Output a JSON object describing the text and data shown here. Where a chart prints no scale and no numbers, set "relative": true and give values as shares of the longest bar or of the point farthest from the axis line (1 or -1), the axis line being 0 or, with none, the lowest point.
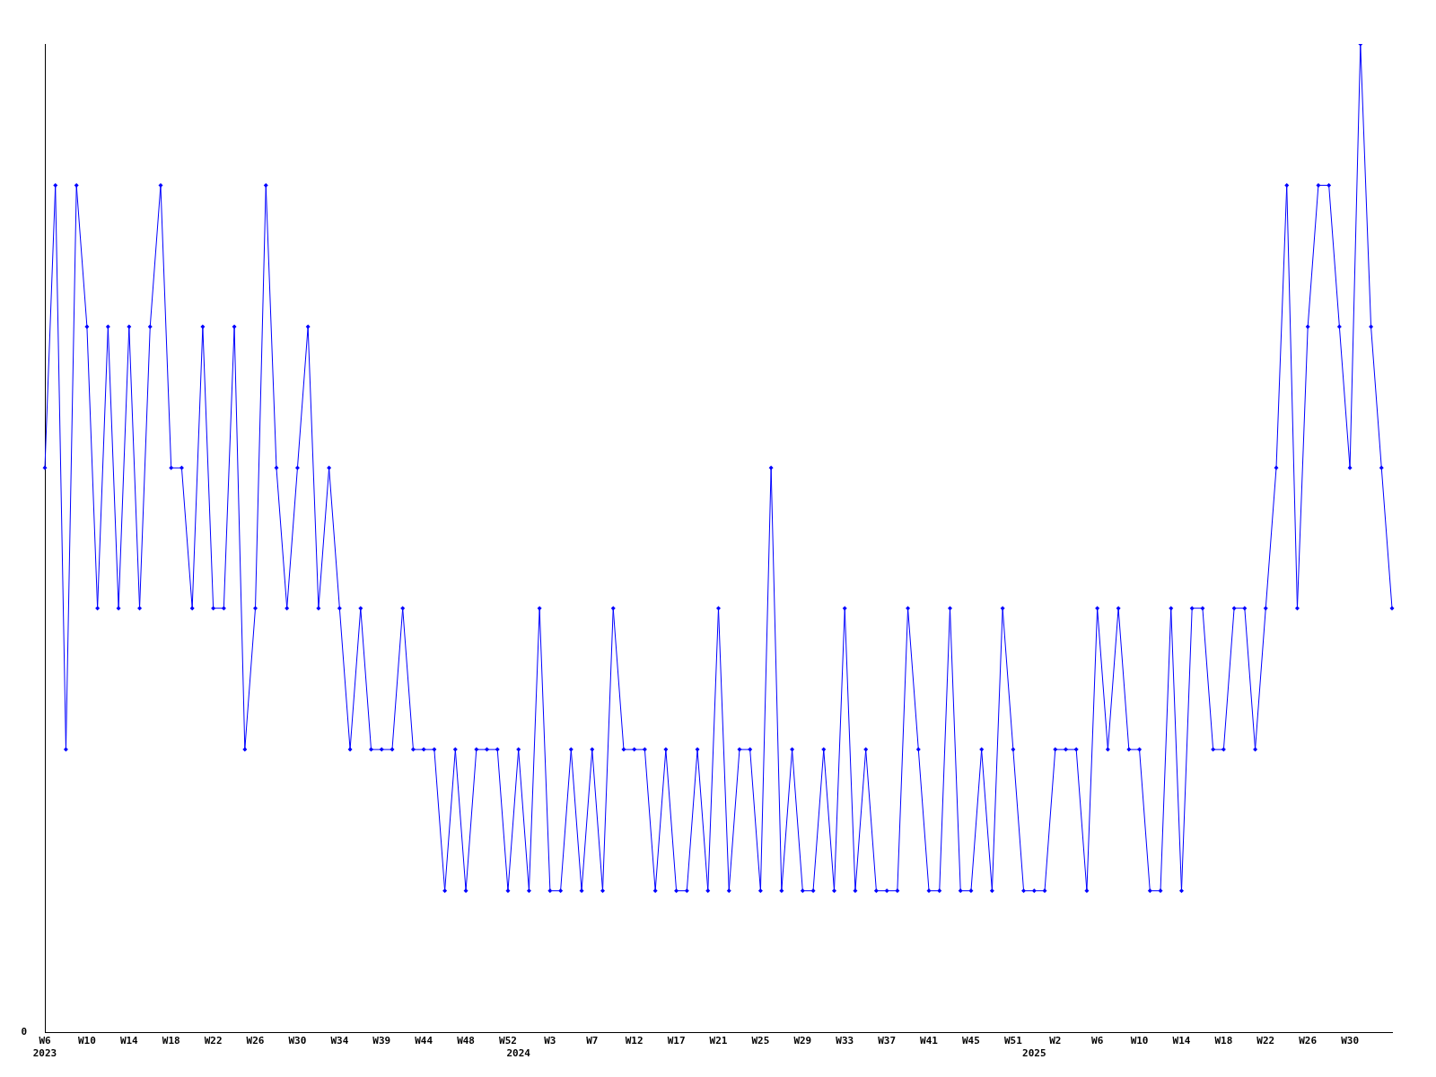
{
  "chart_data": {
    "type": "line",
    "relative": true,
    "categories": [
      "W6\n2023",
      null,
      null,
      null,
      "W10",
      null,
      null,
      null,
      "W14",
      null,
      null,
      null,
      "W18",
      null,
      null,
      null,
      "W22",
      null,
      null,
      null,
      "W26",
      null,
      null,
      null,
      "W30",
      null,
      null,
      null,
      "W34",
      null,
      null,
      null,
      "W39",
      null,
      null,
      null,
      "W44",
      null,
      null,
      null,
      "W48",
      null,
      null,
      null,
      "W52",
      "\n2024",
      null,
      null,
      "W3",
      null,
      null,
      null,
      "W7",
      null,
      null,
      null,
      "W12",
      null,
      null,
      null,
      "W17",
      null,
      null,
      null,
      "W21",
      null,
      null,
      null,
      "W25",
      null,
      null,
      null,
      "W29",
      null,
      null,
      null,
      "W33",
      null,
      null,
      null,
      "W37",
      null,
      null,
      null,
      "W41",
      null,
      null,
      null,
      "W45",
      null,
      null,
      null,
      "W51",
      null,
      "\n2025",
      null,
      "W2",
      null,
      null,
      null,
      "W6",
      null,
      null,
      null,
      "W10",
      null,
      null,
      null,
      "W14",
      null,
      null,
      null,
      "W18",
      null,
      null,
      null,
      "W22",
      null,
      null,
      null,
      "W26",
      null,
      null,
      null,
      "W30",
      null,
      null,
      null,
      null
    ],
    "series": [
      {
        "color": "#0000ff",
        "values": [
          0.571,
          0.857,
          0.286,
          0.857,
          0.714,
          0.429,
          0.714,
          0.429,
          0.714,
          0.429,
          0.714,
          0.857,
          0.571,
          0.571,
          0.429,
          0.714,
          0.429,
          0.429,
          0.714,
          0.286,
          0.429,
          0.857,
          0.571,
          0.429,
          0.571,
          0.714,
          0.429,
          0.571,
          0.429,
          0.286,
          0.429,
          0.286,
          0.286,
          0.286,
          0.429,
          0.286,
          0.286,
          0.286,
          0.143,
          0.286,
          0.143,
          0.286,
          0.286,
          0.286,
          0.143,
          0.286,
          0.143,
          0.429,
          0.143,
          0.143,
          0.286,
          0.143,
          0.286,
          0.143,
          0.429,
          0.286,
          0.286,
          0.286,
          0.143,
          0.286,
          0.143,
          0.143,
          0.286,
          0.143,
          0.429,
          0.143,
          0.286,
          0.286,
          0.143,
          0.571,
          0.143,
          0.286,
          0.143,
          0.143,
          0.286,
          0.143,
          0.429,
          0.143,
          0.286,
          0.143,
          0.143,
          0.143,
          0.429,
          0.286,
          0.143,
          0.143,
          0.429,
          0.143,
          0.143,
          0.286,
          0.143,
          0.429,
          0.286,
          0.143,
          0.143,
          0.143,
          0.286,
          0.286,
          0.286,
          0.143,
          0.429,
          0.286,
          0.429,
          0.286,
          0.286,
          0.143,
          0.143,
          0.429,
          0.143,
          0.429,
          0.429,
          0.286,
          0.286,
          0.429,
          0.429,
          0.286,
          0.429,
          0.571,
          0.857,
          0.429,
          0.714,
          0.857,
          0.857,
          0.714,
          0.571,
          1,
          0.714,
          0.571,
          0.429
        ]
      }
    ],
    "annotations": [
      "0"
    ],
    "marker": "diamond",
    "grid": false,
    "legend": false
  }
}
